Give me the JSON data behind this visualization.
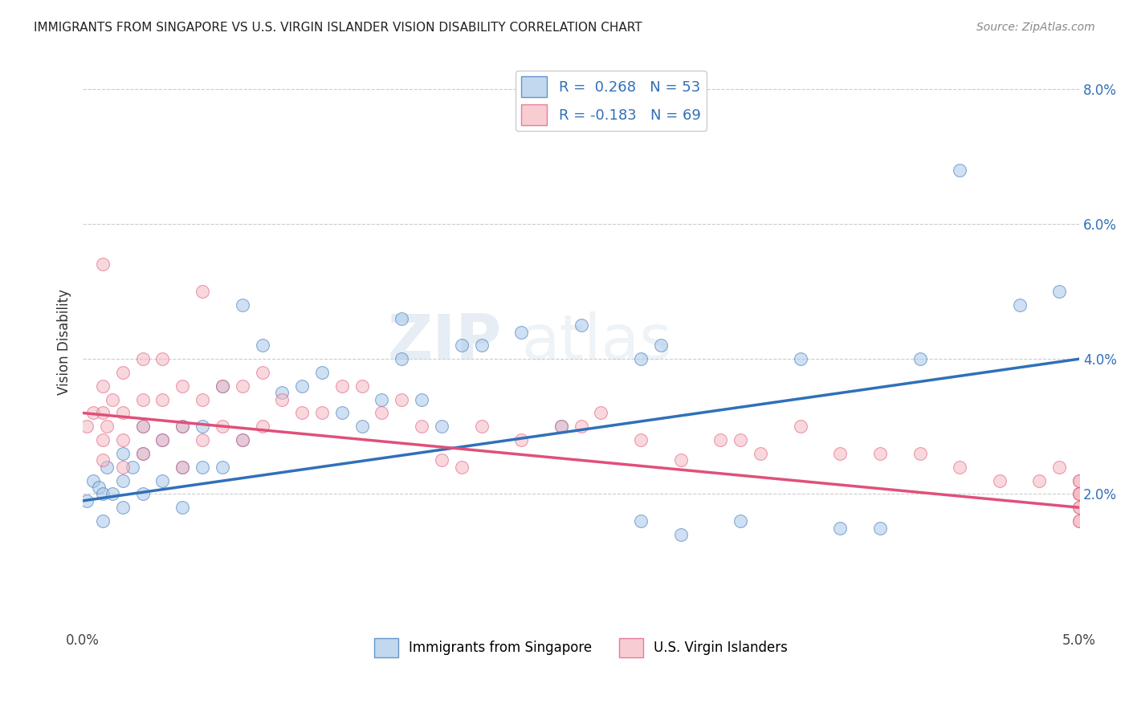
{
  "title": "IMMIGRANTS FROM SINGAPORE VS U.S. VIRGIN ISLANDER VISION DISABILITY CORRELATION CHART",
  "source": "Source: ZipAtlas.com",
  "ylabel": "Vision Disability",
  "x_min": 0.0,
  "x_max": 0.05,
  "y_min": 0.0,
  "y_max": 0.085,
  "x_ticks": [
    0.0,
    0.01,
    0.02,
    0.03,
    0.04,
    0.05
  ],
  "x_tick_labels": [
    "0.0%",
    "",
    "",
    "",
    "",
    "5.0%"
  ],
  "y_ticks": [
    0.0,
    0.02,
    0.04,
    0.06,
    0.08
  ],
  "y_tick_labels": [
    "",
    "2.0%",
    "4.0%",
    "6.0%",
    "8.0%"
  ],
  "legend_label_blue": "Immigrants from Singapore",
  "legend_label_pink": "U.S. Virgin Islanders",
  "R_blue": 0.268,
  "N_blue": 53,
  "R_pink": -0.183,
  "N_pink": 69,
  "blue_color": "#a8c8e8",
  "pink_color": "#f4b8c0",
  "blue_line_color": "#3070b8",
  "pink_line_color": "#e0507a",
  "blue_line_start_y": 0.019,
  "blue_line_end_y": 0.04,
  "blue_line_dash_end_y": 0.048,
  "pink_line_start_y": 0.032,
  "pink_line_end_y": 0.018,
  "watermark_text": "ZIPatlas",
  "background_color": "#ffffff",
  "grid_color": "#cccccc",
  "blue_scatter_x": [
    0.0002,
    0.0005,
    0.0008,
    0.001,
    0.001,
    0.0012,
    0.0015,
    0.002,
    0.002,
    0.002,
    0.0025,
    0.003,
    0.003,
    0.003,
    0.004,
    0.004,
    0.005,
    0.005,
    0.005,
    0.006,
    0.006,
    0.007,
    0.007,
    0.008,
    0.008,
    0.009,
    0.01,
    0.011,
    0.012,
    0.013,
    0.014,
    0.015,
    0.016,
    0.016,
    0.017,
    0.018,
    0.019,
    0.02,
    0.022,
    0.024,
    0.025,
    0.028,
    0.028,
    0.029,
    0.03,
    0.033,
    0.036,
    0.038,
    0.04,
    0.042,
    0.044,
    0.047,
    0.049
  ],
  "blue_scatter_y": [
    0.019,
    0.022,
    0.021,
    0.016,
    0.02,
    0.024,
    0.02,
    0.018,
    0.022,
    0.026,
    0.024,
    0.02,
    0.026,
    0.03,
    0.022,
    0.028,
    0.018,
    0.024,
    0.03,
    0.024,
    0.03,
    0.024,
    0.036,
    0.028,
    0.048,
    0.042,
    0.035,
    0.036,
    0.038,
    0.032,
    0.03,
    0.034,
    0.04,
    0.046,
    0.034,
    0.03,
    0.042,
    0.042,
    0.044,
    0.03,
    0.045,
    0.016,
    0.04,
    0.042,
    0.014,
    0.016,
    0.04,
    0.015,
    0.015,
    0.04,
    0.068,
    0.048,
    0.05
  ],
  "pink_scatter_x": [
    0.0002,
    0.0005,
    0.001,
    0.001,
    0.001,
    0.001,
    0.001,
    0.0012,
    0.0015,
    0.002,
    0.002,
    0.002,
    0.002,
    0.003,
    0.003,
    0.003,
    0.003,
    0.004,
    0.004,
    0.004,
    0.005,
    0.005,
    0.005,
    0.006,
    0.006,
    0.006,
    0.007,
    0.007,
    0.008,
    0.008,
    0.009,
    0.009,
    0.01,
    0.011,
    0.012,
    0.013,
    0.014,
    0.015,
    0.016,
    0.017,
    0.018,
    0.019,
    0.02,
    0.022,
    0.024,
    0.025,
    0.026,
    0.028,
    0.03,
    0.032,
    0.033,
    0.034,
    0.036,
    0.038,
    0.04,
    0.042,
    0.044,
    0.046,
    0.048,
    0.049,
    0.05,
    0.05,
    0.05,
    0.05,
    0.05,
    0.05,
    0.05,
    0.05,
    0.05
  ],
  "pink_scatter_y": [
    0.03,
    0.032,
    0.025,
    0.028,
    0.032,
    0.036,
    0.054,
    0.03,
    0.034,
    0.024,
    0.028,
    0.032,
    0.038,
    0.026,
    0.03,
    0.034,
    0.04,
    0.028,
    0.034,
    0.04,
    0.024,
    0.03,
    0.036,
    0.028,
    0.034,
    0.05,
    0.03,
    0.036,
    0.028,
    0.036,
    0.03,
    0.038,
    0.034,
    0.032,
    0.032,
    0.036,
    0.036,
    0.032,
    0.034,
    0.03,
    0.025,
    0.024,
    0.03,
    0.028,
    0.03,
    0.03,
    0.032,
    0.028,
    0.025,
    0.028,
    0.028,
    0.026,
    0.03,
    0.026,
    0.026,
    0.026,
    0.024,
    0.022,
    0.022,
    0.024,
    0.02,
    0.022,
    0.022,
    0.02,
    0.02,
    0.018,
    0.016,
    0.018,
    0.016
  ]
}
